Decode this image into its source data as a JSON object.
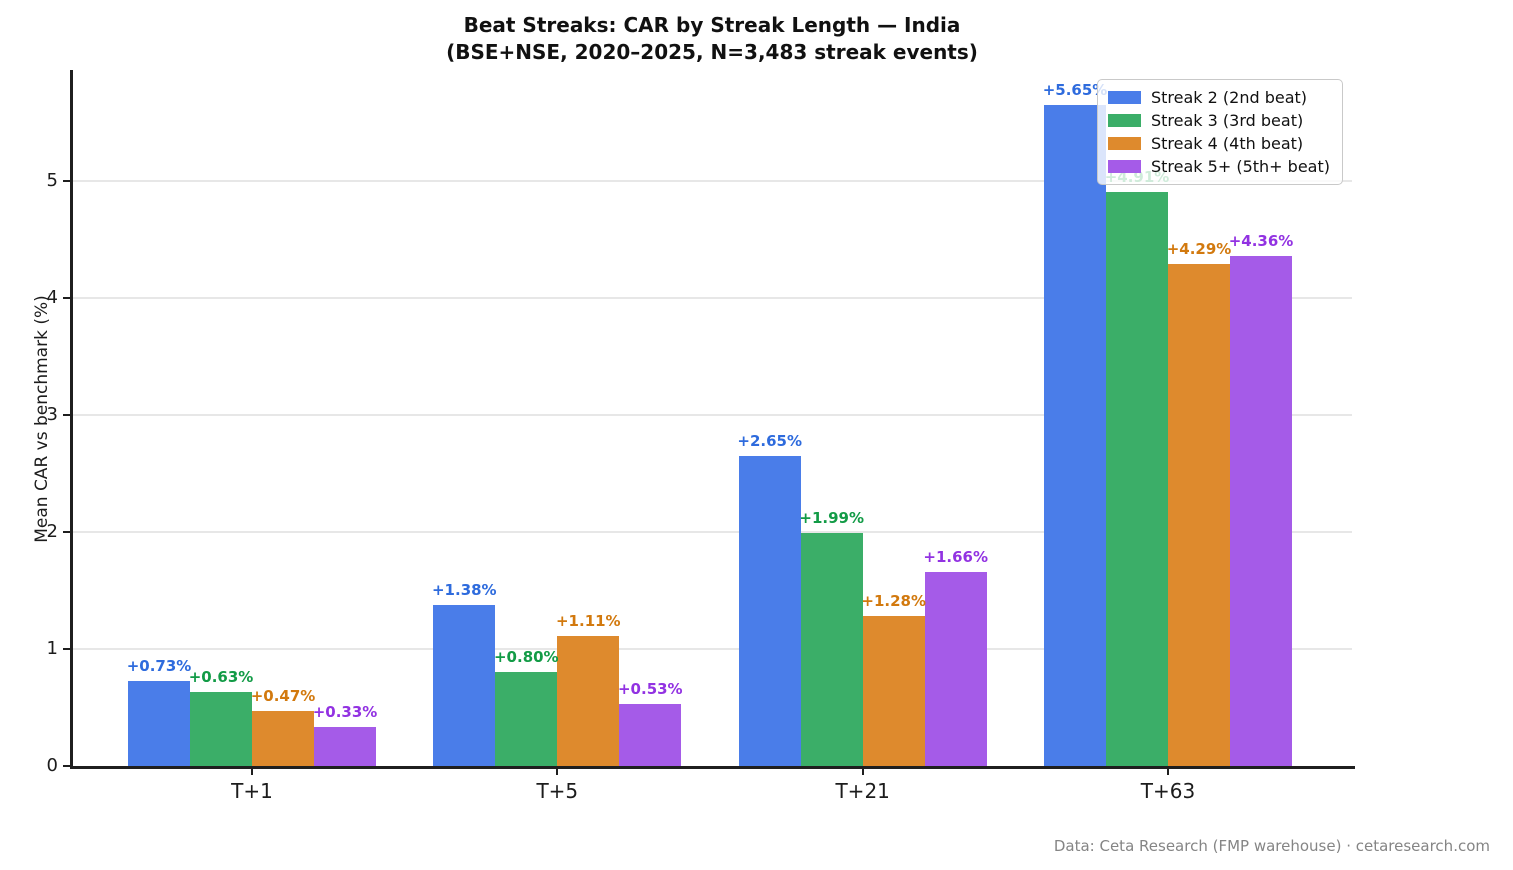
{
  "chart_data": {
    "type": "bar",
    "title": "Beat Streaks: CAR by Streak Length — India",
    "subtitle": "(BSE+NSE, 2020–2025, N=3,483 streak events)",
    "xlabel": "",
    "ylabel": "Mean CAR vs benchmark (%)",
    "categories": [
      "T+1",
      "T+5",
      "T+21",
      "T+63"
    ],
    "y_ticks": [
      0,
      1,
      2,
      3,
      4,
      5
    ],
    "ylim": [
      0,
      5.95
    ],
    "grid": "horizontal-light",
    "legend_position": "upper-right",
    "series": [
      {
        "name": "Streak 2 (2nd beat)",
        "color": "#4a7de9",
        "label_color": "#2e6bdd",
        "values": [
          0.73,
          1.38,
          2.65,
          5.65
        ],
        "labels": [
          "+0.73%",
          "+1.38%",
          "+2.65%",
          "+5.65%"
        ]
      },
      {
        "name": "Streak 3 (3rd beat)",
        "color": "#3bae68",
        "label_color": "#129b46",
        "values": [
          0.63,
          0.8,
          1.99,
          4.91
        ],
        "labels": [
          "+0.63%",
          "+0.80%",
          "+1.99%",
          "+4.91%"
        ]
      },
      {
        "name": "Streak 4 (4th beat)",
        "color": "#de8a2d",
        "label_color": "#d2790e",
        "values": [
          0.47,
          1.11,
          1.28,
          4.29
        ],
        "labels": [
          "+0.47%",
          "+1.11%",
          "+1.28%",
          "+4.29%"
        ]
      },
      {
        "name": "Streak 5+ (5th+ beat)",
        "color": "#a55be8",
        "label_color": "#9232e2",
        "values": [
          0.33,
          0.53,
          1.66,
          4.36
        ],
        "labels": [
          "+0.33%",
          "+0.53%",
          "+1.66%",
          "+4.36%"
        ]
      }
    ]
  },
  "footer": {
    "source": "Data: Ceta Research (FMP warehouse) · cetaresearch.com"
  }
}
